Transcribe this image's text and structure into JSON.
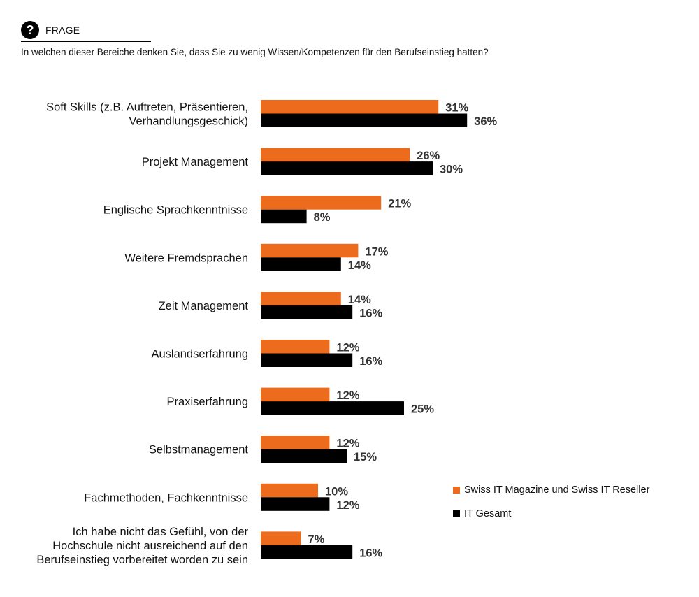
{
  "header": {
    "icon": "question-icon",
    "label": "FRAGE",
    "question": "In welchen dieser Bereiche denken Sie, dass Sie zu wenig Wissen/Kompetenzen für den Berufseinstieg hatten?"
  },
  "colors": {
    "series1": "#ED6B1C",
    "series2": "#000000"
  },
  "chart_data": {
    "type": "bar",
    "orientation": "horizontal",
    "categories": [
      [
        "Soft Skills (z.B. Auftreten, Präsentieren,",
        "Verhandlungsgeschick)"
      ],
      [
        "Projekt Management"
      ],
      [
        "Englische Sprachkenntnisse"
      ],
      [
        "Weitere Fremdsprachen"
      ],
      [
        "Zeit Management"
      ],
      [
        "Auslandserfahrung"
      ],
      [
        "Praxiserfahrung"
      ],
      [
        "Selbstmanagement"
      ],
      [
        "Fachmethoden, Fachkenntnisse"
      ],
      [
        "Ich habe nicht das Gefühl, von der",
        "Hochschule nicht ausreichend auf den",
        "Berufseinstieg vorbereitet worden zu sein"
      ]
    ],
    "series": [
      {
        "name": "Swiss IT Magazine und Swiss IT Reseller",
        "color": "#ED6B1C",
        "values": [
          31,
          26,
          21,
          17,
          14,
          12,
          12,
          12,
          10,
          7
        ],
        "labels": [
          "31%",
          "26%",
          "21%",
          "17%",
          "14%",
          "12%",
          "12%",
          "12%",
          "10%",
          "7%"
        ]
      },
      {
        "name": "IT Gesamt",
        "color": "#000000",
        "values": [
          36,
          30,
          8,
          14,
          16,
          16,
          25,
          15,
          12,
          16
        ],
        "labels": [
          "36%",
          "30%",
          "8%",
          "14%",
          "16%",
          "16%",
          "25%",
          "15%",
          "12%",
          "16%"
        ]
      }
    ],
    "unit": "%",
    "xlim": [
      0,
      40
    ],
    "grid": false,
    "legend_position": "right"
  }
}
